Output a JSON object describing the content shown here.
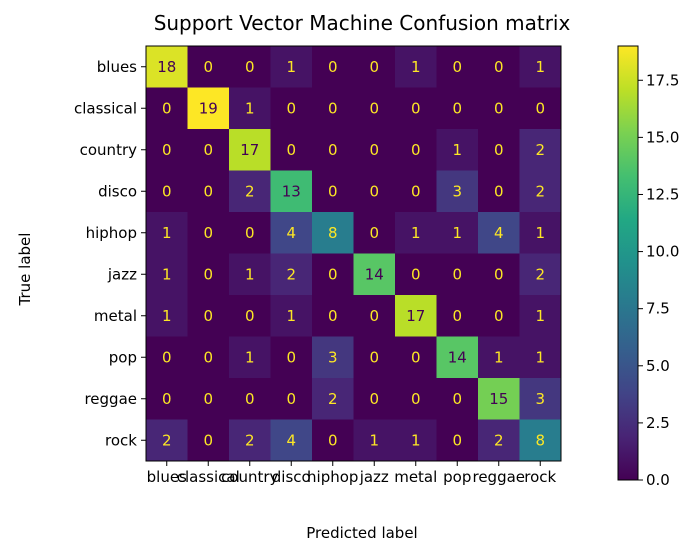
{
  "chart_data": {
    "type": "heatmap",
    "title": "Support Vector Machine Confusion matrix",
    "xlabel": "Predicted label",
    "ylabel": "True label",
    "x_categories": [
      "blues",
      "classical",
      "country",
      "disco",
      "hiphop",
      "jazz",
      "metal",
      "pop",
      "reggae",
      "rock"
    ],
    "y_categories": [
      "blues",
      "classical",
      "country",
      "disco",
      "hiphop",
      "jazz",
      "metal",
      "pop",
      "reggae",
      "rock"
    ],
    "values": [
      [
        18,
        0,
        0,
        1,
        0,
        0,
        1,
        0,
        0,
        1
      ],
      [
        0,
        19,
        1,
        0,
        0,
        0,
        0,
        0,
        0,
        0
      ],
      [
        0,
        0,
        17,
        0,
        0,
        0,
        0,
        1,
        0,
        2
      ],
      [
        0,
        0,
        2,
        13,
        0,
        0,
        0,
        3,
        0,
        2
      ],
      [
        1,
        0,
        0,
        4,
        8,
        0,
        1,
        1,
        4,
        1
      ],
      [
        1,
        0,
        1,
        2,
        0,
        14,
        0,
        0,
        0,
        2
      ],
      [
        1,
        0,
        0,
        1,
        0,
        0,
        17,
        0,
        0,
        1
      ],
      [
        0,
        0,
        1,
        0,
        3,
        0,
        0,
        14,
        1,
        1
      ],
      [
        0,
        0,
        0,
        0,
        2,
        0,
        0,
        0,
        15,
        3
      ],
      [
        2,
        0,
        2,
        4,
        0,
        1,
        1,
        0,
        2,
        8
      ]
    ],
    "vmin": 0,
    "vmax": 19,
    "colormap": "viridis",
    "colorbar": {
      "ticks": [
        0.0,
        2.5,
        5.0,
        7.5,
        10.0,
        12.5,
        15.0,
        17.5
      ],
      "tick_labels": [
        "0.0",
        "2.5",
        "5.0",
        "7.5",
        "10.0",
        "12.5",
        "15.0",
        "17.5"
      ]
    },
    "text_color_light": "#fde725",
    "text_color_dark": "#440154",
    "grid": false
  }
}
